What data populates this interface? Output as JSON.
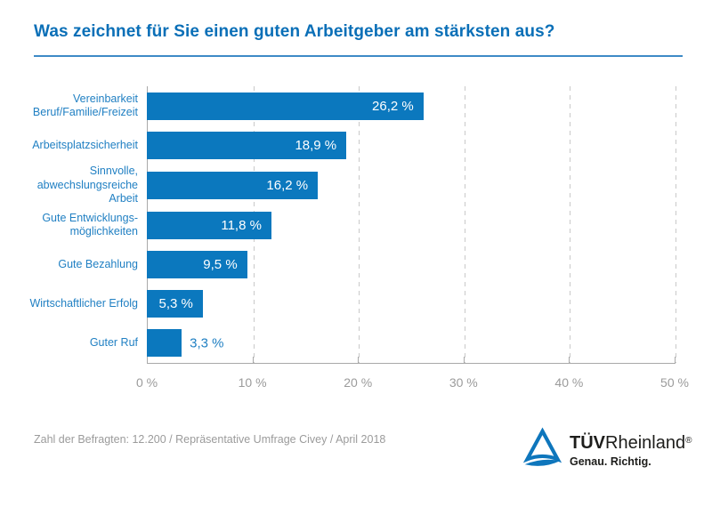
{
  "title": "Was zeichnet für Sie einen guten Arbeitgeber am stärksten aus?",
  "chart_data": {
    "type": "bar",
    "orientation": "horizontal",
    "title": "Was zeichnet für Sie einen guten Arbeitgeber am stärksten aus?",
    "categories": [
      "Vereinbarkeit\nBeruf/Familie/Freizeit",
      "Arbeitsplatzsicherheit",
      "Sinnvolle,\nabwechslungsreiche\nArbeit",
      "Gute Entwicklungs-\nmöglichkeiten",
      "Gute Bezahlung",
      "Wirtschaftlicher Erfolg",
      "Guter Ruf"
    ],
    "values": [
      26.2,
      18.9,
      16.2,
      11.8,
      9.5,
      5.3,
      3.3
    ],
    "value_labels": [
      "26,2 %",
      "18,9 %",
      "16,2 %",
      "11,8 %",
      "9,5 %",
      "5,3 %",
      "3,3 %"
    ],
    "label_positions": [
      "inside",
      "inside",
      "inside",
      "inside",
      "inside",
      "inside",
      "outside"
    ],
    "unit": "%",
    "xlim": [
      0,
      50
    ],
    "x_ticks": [
      "0 %",
      "10 %",
      "20 %",
      "30 %",
      "40 %",
      "50 %"
    ],
    "grid": "vertical-dashed-every-10",
    "legend": "none",
    "bar_color": "#0b78be"
  },
  "footer": {
    "source": "Zahl der Befragten: 12.200 / Repräsentative Umfrage Civey / April 2018"
  },
  "logo": {
    "brand_bold": "TÜV",
    "brand_regular": "Rheinland",
    "registered": "®",
    "tagline": "Genau. Richtig."
  },
  "colors": {
    "title_blue": "#0a6fb7",
    "rule_blue": "#3d8ac6",
    "bar_blue": "#0b78be",
    "category_label_blue": "#2180c3",
    "axis_gray": "#a9a9a9",
    "tick_text_gray": "#9b9b9b",
    "gridline_gray": "#c9c9c9",
    "footer_gray": "#9b9b9b",
    "logo_dark": "#1d1d1b",
    "bar_value_text": "#ffffff"
  }
}
